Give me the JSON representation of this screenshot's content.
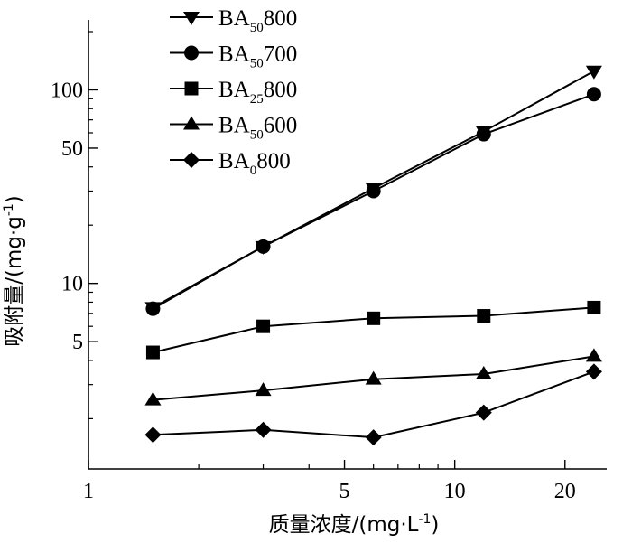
{
  "chart_data": {
    "type": "line",
    "x_scale": "log",
    "y_scale": "log",
    "xlabel": {
      "prefix": "质量浓度/(mg·L",
      "sup": "-1",
      "suffix": ")"
    },
    "ylabel": {
      "prefix": "吸附量/(mg·g",
      "sup": "-1",
      "suffix": ")"
    },
    "xlim": [
      1,
      26
    ],
    "ylim": [
      1.1,
      230
    ],
    "x_ticks": [
      1,
      5,
      10,
      20
    ],
    "y_ticks": [
      5,
      10,
      50,
      100
    ],
    "x_minor_ticks": [
      2,
      3,
      4,
      6,
      7,
      8,
      9
    ],
    "y_minor_ticks": [
      2,
      3,
      4,
      6,
      7,
      8,
      9,
      20,
      30,
      40,
      60,
      70,
      80,
      90,
      200
    ],
    "legend_position": "top-left",
    "grid": false,
    "x": [
      1.5,
      3,
      6,
      12,
      24
    ],
    "series": [
      {
        "name": {
          "base": "BA",
          "sub": "50",
          "suffix": "800"
        },
        "marker": "triangle-down",
        "values": [
          7.5,
          15.5,
          31,
          61,
          125
        ]
      },
      {
        "name": {
          "base": "BA",
          "sub": "50",
          "suffix": "700"
        },
        "marker": "circle",
        "values": [
          7.4,
          15.5,
          30,
          59,
          95
        ]
      },
      {
        "name": {
          "base": "BA",
          "sub": "25",
          "suffix": "800"
        },
        "marker": "square",
        "values": [
          4.4,
          6.0,
          6.6,
          6.8,
          7.5
        ]
      },
      {
        "name": {
          "base": "BA",
          "sub": "50",
          "suffix": "600"
        },
        "marker": "triangle-up",
        "values": [
          2.5,
          2.8,
          3.2,
          3.4,
          4.2
        ]
      },
      {
        "name": {
          "base": "BA",
          "sub": "0",
          "suffix": "800"
        },
        "marker": "diamond",
        "values": [
          1.65,
          1.75,
          1.6,
          2.15,
          3.5
        ]
      }
    ]
  }
}
